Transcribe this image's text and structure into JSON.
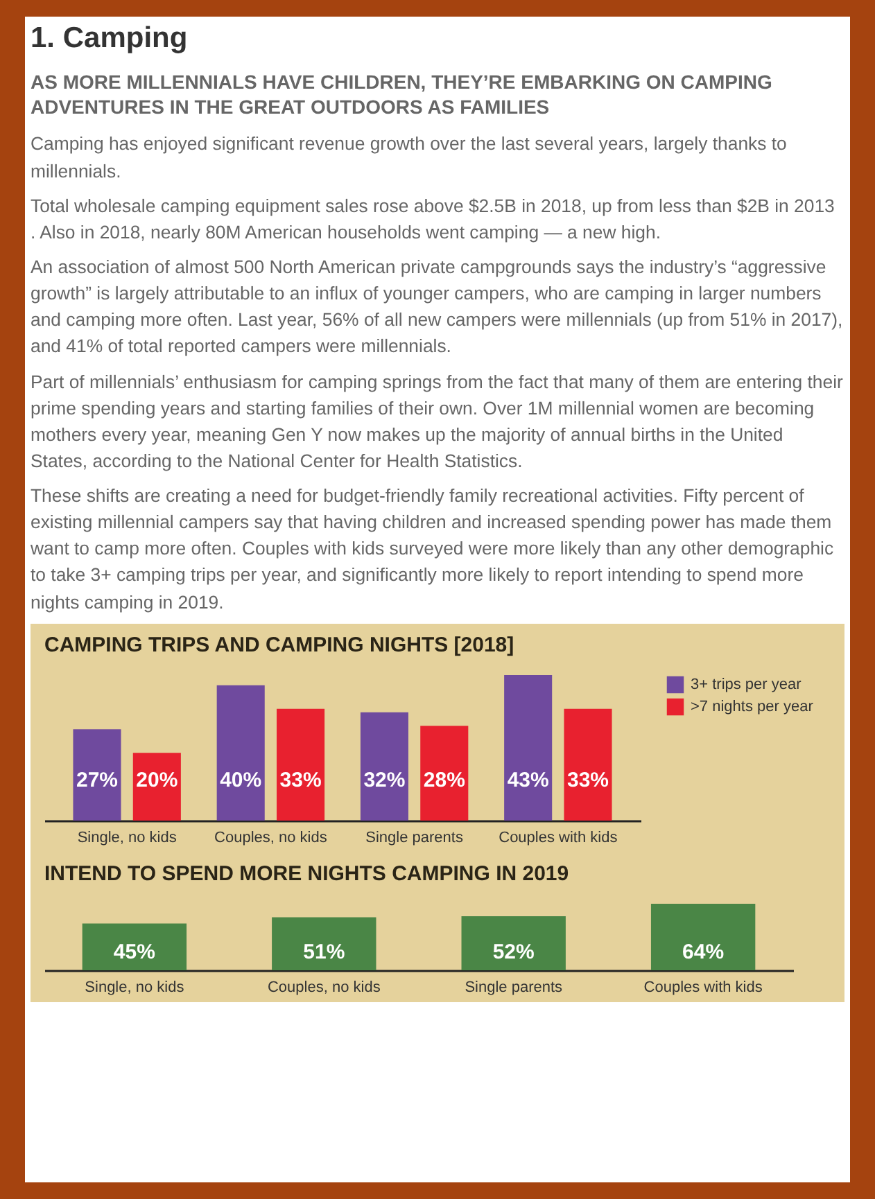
{
  "chart_data": [
    {
      "type": "other",
      "title": "1. Camping",
      "subtitle": "AS MORE MILLENNIALS HAVE CHILDREN, THEY’RE EMBARKING ON CAMPING ADVENTURES IN THE GREAT OUTDOORS AS FAMILIES",
      "annotations": [
        "Camping has enjoyed significant revenue growth over the last several years, largely thanks to millennials.",
        "Total wholesale camping equipment sales rose above $2.5B in 2018, up from less than $2B in 2013 . Also in 2018, nearly 80M American households went camping — a new high.",
        "An association of almost 500 North American private campgrounds says the industry’s “aggressive growth” is largely attributable to an influx of younger campers, who are camping in larger numbers and camping more often. Last year, 56% of all new campers were millennials (up from 51% in 2017), and 41% of total reported campers were millennials.",
        "Part of millennials’ enthusiasm for camping springs from the fact that many of them are entering their prime spending years and starting families of their own. Over 1M millennial women are becoming mothers every year, meaning Gen Y now makes up the majority of annual births in the United States, according to the National Center for Health Statistics.",
        "These shifts are creating a need for budget-friendly family recreational activities. Fifty percent of existing millennial campers say that having children and increased spending power has made them want to camp more often. Couples with kids surveyed were more likely than any other demographic to take 3+ camping trips per year, and significantly more likely to report intending to spend more nights camping in 2019."
      ]
    },
    {
      "type": "bar",
      "title": "CAMPING TRIPS AND CAMPING NIGHTS [2018]",
      "categories": [
        "Single, no kids",
        "Couples, no kids",
        "Single parents",
        "Couples with kids"
      ],
      "legend": "right",
      "series": [
        {
          "name": "3+ trips per year",
          "color": "#6f4a9e",
          "values": [
            27,
            40,
            32,
            43
          ],
          "value_labels": [
            "27%",
            "40%",
            "32%",
            "43%"
          ]
        },
        {
          "name": ">7 nights per year",
          "color": "#e8212f",
          "values": [
            20,
            33,
            28,
            33
          ],
          "value_labels": [
            "20%",
            "33%",
            "28%",
            "33%"
          ]
        }
      ]
    },
    {
      "type": "bar",
      "title": "INTEND TO SPEND MORE NIGHTS CAMPING IN 2019",
      "categories": [
        "Single, no kids",
        "Couples, no kids",
        "Single parents",
        "Couples with kids"
      ],
      "color": "#4a8646",
      "values": [
        45,
        51,
        52,
        64
      ],
      "value_labels": [
        "45%",
        "51%",
        "52%",
        "64%"
      ]
    }
  ]
}
